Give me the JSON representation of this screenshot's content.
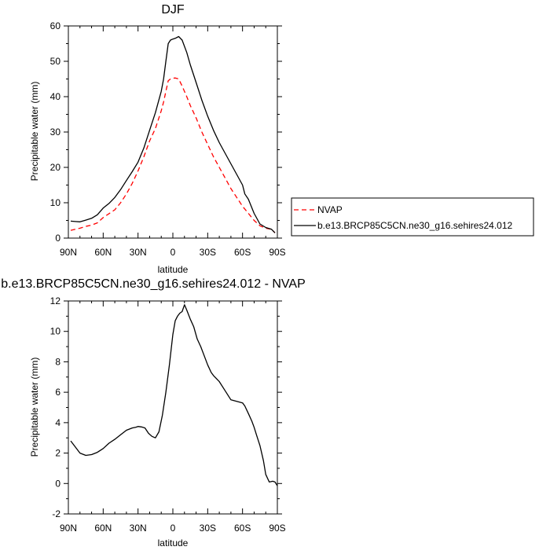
{
  "chart_data": [
    {
      "type": "line",
      "title": "DJF",
      "xlabel": "latitude",
      "ylabel": "Precipitable water (mm)",
      "xlim": [
        90,
        -90
      ],
      "ylim": [
        0,
        60
      ],
      "xticks": [
        90,
        60,
        30,
        0,
        -30,
        -60,
        -90
      ],
      "xtick_labels": [
        "90N",
        "60N",
        "30N",
        "0",
        "30S",
        "60S",
        "90S"
      ],
      "yticks": [
        0,
        10,
        20,
        30,
        40,
        50,
        60
      ],
      "ytick_labels": [
        "0",
        "10",
        "20",
        "30",
        "40",
        "50",
        "60"
      ],
      "legend_position": "right",
      "series": [
        {
          "name": "NVAP",
          "color": "#ff0000",
          "dash": true,
          "x": [
            88,
            80,
            75,
            70,
            65,
            60,
            55,
            50,
            45,
            40,
            35,
            30,
            25,
            20,
            15,
            10,
            8,
            6,
            4,
            2,
            0,
            -2,
            -5,
            -8,
            -12,
            -15,
            -20,
            -25,
            -30,
            -35,
            -40,
            -45,
            -50,
            -55,
            -60,
            -65,
            -70,
            -75,
            -80,
            -85,
            -88
          ],
          "y": [
            2.2,
            2.8,
            3.3,
            3.7,
            4.3,
            5.8,
            6.9,
            8.0,
            10.0,
            12.5,
            15.5,
            19.0,
            23.0,
            27.5,
            31.0,
            36.0,
            38.5,
            41.5,
            44.5,
            45.0,
            45.2,
            45.3,
            45.0,
            43.0,
            40.0,
            37.5,
            34.0,
            30.0,
            26.5,
            23.0,
            20.0,
            17.0,
            14.0,
            11.5,
            9.0,
            7.0,
            5.0,
            3.5,
            2.8,
            2.5,
            1.5
          ]
        },
        {
          "name": "b.e13.BRCP85C5CN.ne30_g16.sehires24.012",
          "color": "#000000",
          "dash": false,
          "x": [
            88,
            84,
            80,
            75,
            70,
            65,
            60,
            55,
            50,
            45,
            40,
            35,
            30,
            25,
            20,
            15,
            10,
            8,
            6,
            4,
            2,
            0,
            -2,
            -5,
            -8,
            -12,
            -15,
            -20,
            -25,
            -30,
            -35,
            -40,
            -45,
            -50,
            -55,
            -60,
            -62,
            -65,
            -70,
            -75,
            -80,
            -85,
            -88
          ],
          "y": [
            4.8,
            4.7,
            4.6,
            5.1,
            5.6,
            6.6,
            8.5,
            9.8,
            11.5,
            13.7,
            16.3,
            18.8,
            21.5,
            25.5,
            30.5,
            35.5,
            41.5,
            45.0,
            50.0,
            55.0,
            56.0,
            56.3,
            56.5,
            57.0,
            56.0,
            52.5,
            49.0,
            44.0,
            39.0,
            34.5,
            30.5,
            27.0,
            24.0,
            21.0,
            18.0,
            15.0,
            12.5,
            11.0,
            7.0,
            4.0,
            3.0,
            2.5,
            1.5
          ]
        }
      ]
    },
    {
      "type": "line",
      "title": "b.e13.BRCP85C5CN.ne30_g16.sehires24.012 - NVAP",
      "xlabel": "latitude",
      "ylabel": "Precipitable water (mm)",
      "xlim": [
        90,
        -90
      ],
      "ylim": [
        -2,
        12
      ],
      "xticks": [
        90,
        60,
        30,
        0,
        -30,
        -60,
        -90
      ],
      "xtick_labels": [
        "90N",
        "60N",
        "30N",
        "0",
        "30S",
        "60S",
        "90S"
      ],
      "yticks": [
        -2,
        0,
        2,
        4,
        6,
        8,
        10,
        12
      ],
      "ytick_labels": [
        "-2",
        "0",
        "2",
        "4",
        "6",
        "8",
        "10",
        "12"
      ],
      "series": [
        {
          "color": "#000000",
          "dash": false,
          "x": [
            88,
            85,
            80,
            75,
            70,
            65,
            62,
            60,
            55,
            50,
            45,
            40,
            35,
            32,
            30,
            27,
            24,
            21,
            18,
            15,
            12,
            9,
            6,
            3,
            0,
            -2,
            -4,
            -6,
            -8,
            -10,
            -12,
            -15,
            -18,
            -21,
            -24,
            -27,
            -30,
            -33,
            -35,
            -40,
            -45,
            -50,
            -55,
            -60,
            -62,
            -65,
            -68,
            -70,
            -72,
            -75,
            -78,
            -80,
            -83,
            -86,
            -88,
            -90
          ],
          "y": [
            2.8,
            2.5,
            2.0,
            1.85,
            1.9,
            2.05,
            2.2,
            2.3,
            2.65,
            2.9,
            3.2,
            3.5,
            3.65,
            3.7,
            3.75,
            3.72,
            3.65,
            3.3,
            3.1,
            3.0,
            3.4,
            4.5,
            6.0,
            7.8,
            9.8,
            10.7,
            11.0,
            11.2,
            11.3,
            11.75,
            11.4,
            10.8,
            10.3,
            9.5,
            9.0,
            8.4,
            7.8,
            7.3,
            7.1,
            6.7,
            6.1,
            5.5,
            5.4,
            5.3,
            5.1,
            4.6,
            4.1,
            3.7,
            3.2,
            2.5,
            1.5,
            0.6,
            0.1,
            0.15,
            0.1,
            -0.15
          ]
        }
      ]
    }
  ]
}
